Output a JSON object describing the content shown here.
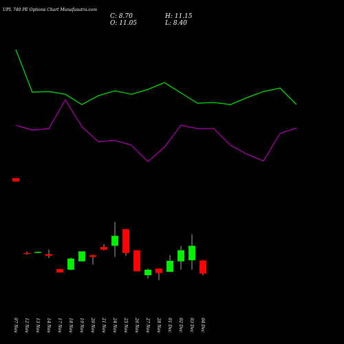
{
  "chart_data": {
    "type": "candlestick",
    "title": "UPL 740 PE Options Chart Munafasutra.com",
    "ohlc_labels": [
      "C: 8.70",
      "H: 11.15",
      "O: 11.05",
      "L: 8.40"
    ],
    "categories": [
      "07 Nov",
      "12 Nov",
      "13 Nov",
      "14 Nov",
      "17 Nov",
      "18 Nov",
      "19 Nov",
      "20 Nov",
      "21 Nov",
      "24 Nov",
      "25 Nov",
      "26 Nov",
      "27 Nov",
      "28 Nov",
      "01 Dec",
      "02 Dec",
      "03 Dec",
      "04 Dec"
    ],
    "open": [
      25.9,
      12.4,
      12.6,
      12.2,
      9.5,
      9.4,
      10.9,
      12.0,
      13.5,
      13.7,
      16.7,
      12.9,
      8.4,
      9.6,
      9.0,
      10.9,
      11.1,
      11.05
    ],
    "high": [
      25.9,
      12.7,
      12.7,
      13.0,
      9.5,
      11.6,
      12.7,
      12.1,
      14.0,
      18.0,
      16.7,
      12.9,
      9.6,
      9.6,
      12.0,
      13.7,
      15.8,
      11.15
    ],
    "low": [
      25.3,
      12.1,
      12.5,
      11.5,
      8.9,
      9.3,
      10.9,
      10.3,
      12.9,
      11.7,
      11.9,
      9.1,
      7.8,
      7.5,
      9.0,
      9.4,
      9.4,
      8.4
    ],
    "close": [
      25.3,
      12.3,
      12.6,
      11.9,
      8.9,
      11.4,
      12.7,
      11.7,
      13.0,
      15.5,
      12.4,
      9.1,
      9.4,
      8.8,
      11.0,
      12.9,
      13.7,
      8.7
    ],
    "up_color": "#00ee00",
    "down_color": "#ff0000",
    "series": [
      {
        "color": "#00dd00",
        "values": [
          49.07,
          41.38,
          41.51,
          41.01,
          39.15,
          40.76,
          41.63,
          41.01,
          41.88,
          43.12,
          41.26,
          39.4,
          39.52,
          39.15,
          40.39,
          41.51,
          42.13,
          39.15
        ]
      },
      {
        "color": "#aa00aa",
        "values": [
          35.43,
          34.56,
          34.81,
          40.02,
          35.18,
          32.46,
          32.7,
          31.84,
          28.86,
          31.46,
          35.43,
          34.81,
          34.81,
          31.84,
          30.22,
          28.98,
          33.94,
          34.94
        ]
      }
    ],
    "ylim": [
      -4,
      58
    ]
  }
}
